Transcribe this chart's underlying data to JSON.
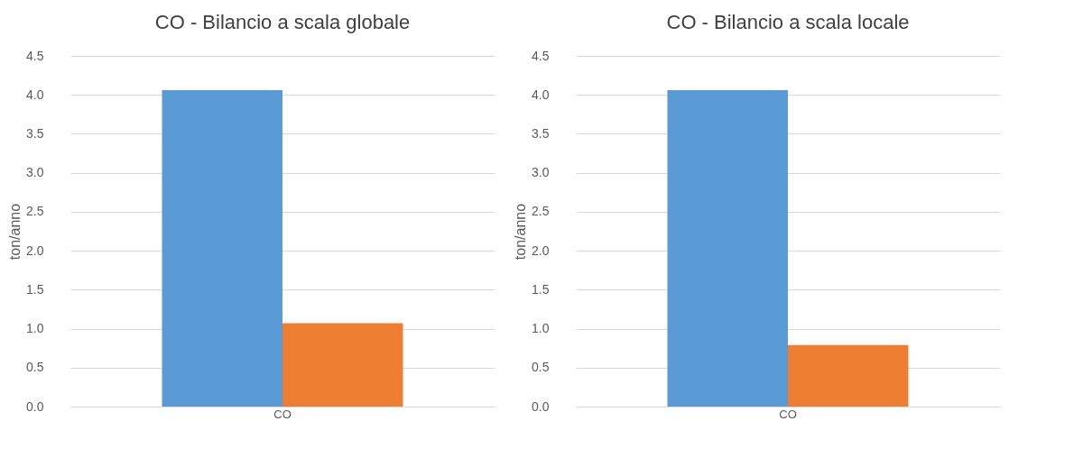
{
  "chart_data": [
    {
      "type": "bar",
      "title": "CO - Bilancio a scala globale",
      "ylabel": "ton/anno",
      "categories": [
        "CO"
      ],
      "series": [
        {
          "color": "#5b9bd5",
          "values": [
            4.06
          ]
        },
        {
          "color": "#ed7d31",
          "values": [
            1.07
          ]
        }
      ],
      "ylim": [
        0,
        4.5
      ],
      "yticks": [
        {
          "value": 0,
          "label": "0.0"
        },
        0.5,
        {
          "value": 1,
          "label": "1.0"
        },
        1.5,
        {
          "value": 2,
          "label": "2.0"
        },
        2.5,
        {
          "value": 3,
          "label": "3.0"
        },
        3.5,
        {
          "value": 4,
          "label": "4.0"
        },
        4.5
      ],
      "grid": "y"
    },
    {
      "type": "bar",
      "title": "CO - Bilancio a scala locale",
      "ylabel": "ton/anno",
      "categories": [
        "CO"
      ],
      "series": [
        {
          "color": "#5b9bd5",
          "values": [
            4.06
          ]
        },
        {
          "color": "#ed7d31",
          "values": [
            0.79
          ]
        }
      ],
      "ylim": [
        0,
        4.5
      ],
      "yticks": [
        {
          "value": 0,
          "label": "0.0"
        },
        0.5,
        {
          "value": 1,
          "label": "1.0"
        },
        1.5,
        {
          "value": 2,
          "label": "2.0"
        },
        2.5,
        {
          "value": 3,
          "label": "3.0"
        },
        3.5,
        {
          "value": 4,
          "label": "4.0"
        },
        4.5
      ],
      "grid": "y"
    }
  ]
}
